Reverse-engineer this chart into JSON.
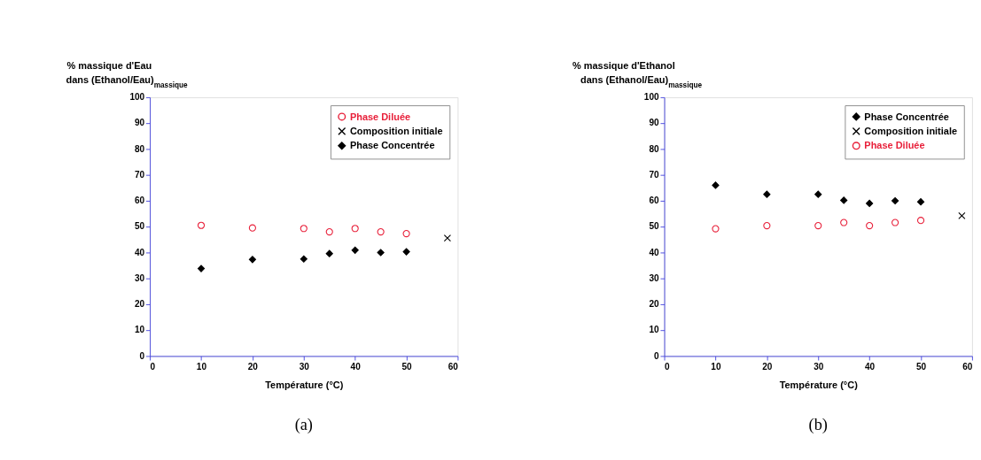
{
  "chart_data": [
    {
      "type": "scatter",
      "xlabel": "Température (°C)",
      "ylabel": "% massique d'Eau\ndans (Ethanol/Eau)$_{massique}$",
      "xlim": [
        0,
        60
      ],
      "ylim": [
        0,
        100
      ],
      "xticks": [
        0,
        10,
        20,
        30,
        40,
        50,
        60
      ],
      "yticks": [
        0,
        10,
        20,
        30,
        40,
        50,
        60,
        70,
        80,
        90,
        100
      ],
      "grid": false,
      "legend": "top right",
      "annotations": [
        "(a)"
      ],
      "series": [
        {
          "name": "Phase Diluée",
          "color": "#e8203a",
          "marker": "circle",
          "x": [
            10,
            20,
            30,
            35,
            40,
            45,
            50
          ],
          "values": [
            50.5,
            49.5,
            49.3,
            48,
            49.3,
            48,
            47.3
          ]
        },
        {
          "name": "Composition initiale",
          "color": "#000000",
          "marker": "cross",
          "x": [
            58
          ],
          "values": [
            45.6
          ]
        },
        {
          "name": "Phase Concentrée",
          "color": "#000000",
          "marker": "diamond",
          "x": [
            10,
            20,
            30,
            35,
            40,
            45,
            50
          ],
          "values": [
            33.8,
            37.3,
            37.5,
            39.6,
            40.9,
            40,
            40.3
          ]
        }
      ]
    },
    {
      "type": "scatter",
      "xlabel": "Température (°C)",
      "ylabel": "% massique d'Ethanol\ndans (Ethanol/Eau)$_{massique}$",
      "xlim": [
        0,
        60
      ],
      "ylim": [
        0,
        100
      ],
      "xticks": [
        0,
        10,
        20,
        30,
        40,
        50,
        60
      ],
      "yticks": [
        0,
        10,
        20,
        30,
        40,
        50,
        60,
        70,
        80,
        90,
        100
      ],
      "grid": false,
      "legend": "top right",
      "annotations": [
        "(b)"
      ],
      "series": [
        {
          "name": "Phase Concentrée",
          "color": "#000000",
          "marker": "diamond",
          "x": [
            10,
            20,
            30,
            35,
            40,
            45,
            50
          ],
          "values": [
            66,
            62.5,
            62.5,
            60.2,
            59,
            60,
            59.6
          ]
        },
        {
          "name": "Composition initiale",
          "color": "#000000",
          "marker": "cross",
          "x": [
            58
          ],
          "values": [
            54.2
          ]
        },
        {
          "name": "Phase Diluée",
          "color": "#e8203a",
          "marker": "circle",
          "x": [
            10,
            20,
            30,
            35,
            40,
            45,
            50
          ],
          "values": [
            49.2,
            50.4,
            50.4,
            51.6,
            50.4,
            51.6,
            52.4
          ]
        }
      ]
    }
  ]
}
